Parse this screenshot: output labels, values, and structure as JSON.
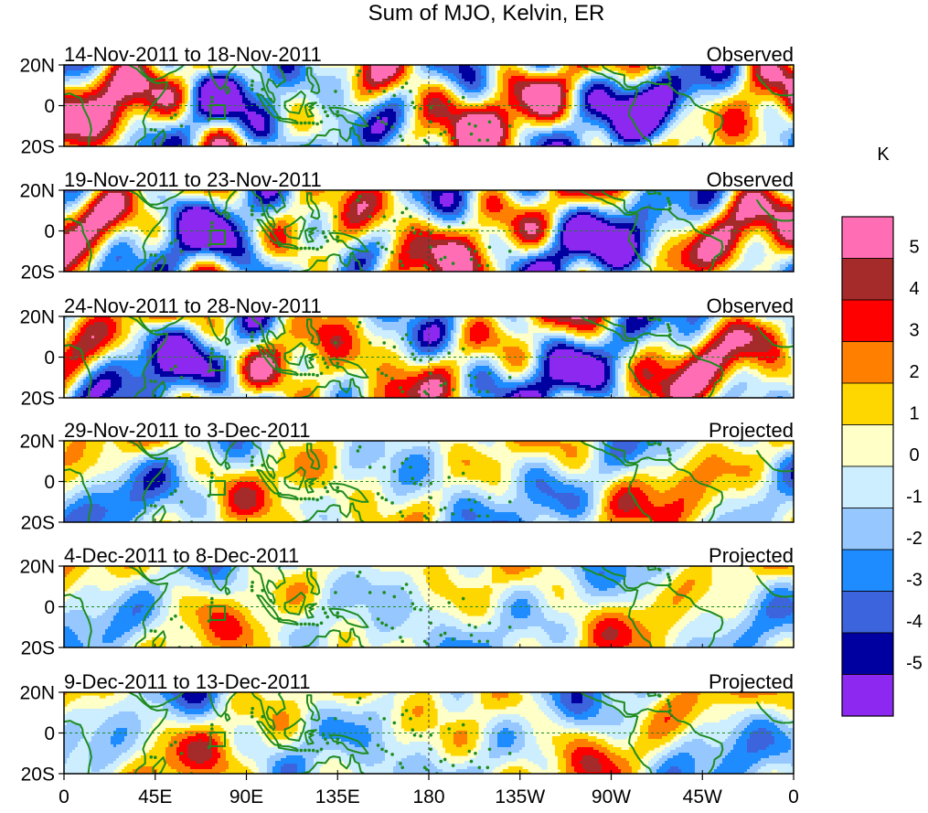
{
  "title": "Sum of MJO, Kelvin, ER",
  "lat_labels": [
    "20N",
    "0",
    "20S"
  ],
  "lon_labels": [
    "0",
    "45E",
    "90E",
    "135E",
    "180",
    "135W",
    "90W",
    "45W",
    "0"
  ],
  "panels": [
    {
      "period": "14-Nov-2011 to 18-Nov-2011",
      "type": "Observed",
      "seed": 1,
      "amp": 1.55
    },
    {
      "period": "19-Nov-2011 to 23-Nov-2011",
      "type": "Observed",
      "seed": 2,
      "amp": 1.45
    },
    {
      "period": "24-Nov-2011 to 28-Nov-2011",
      "type": "Observed",
      "seed": 3,
      "amp": 1.35
    },
    {
      "period": "29-Nov-2011 to 3-Dec-2011",
      "type": "Projected",
      "seed": 4,
      "amp": 0.78
    },
    {
      "period": "4-Dec-2011 to 8-Dec-2011",
      "type": "Projected",
      "seed": 5,
      "amp": 0.62
    },
    {
      "period": "9-Dec-2011 to 13-Dec-2011",
      "type": "Projected",
      "seed": 6,
      "amp": 0.72
    }
  ],
  "colorbar": {
    "unit": "K",
    "labels": [
      "5",
      "4",
      "3",
      "2",
      "1",
      "0",
      "-1",
      "-2",
      "-3",
      "-4",
      "-5"
    ],
    "colors": [
      "#ff6eb4",
      "#a52a2a",
      "#ff0000",
      "#ff7f00",
      "#ffd700",
      "#ffffc8",
      "#cceeff",
      "#96c8ff",
      "#1e8cff",
      "#3c64dc",
      "#0000a0",
      "#8c28f0"
    ]
  },
  "colors": {
    "coast": "#1e8c1e",
    "dash": "#1e8c1e",
    "frame": "#000000"
  }
}
